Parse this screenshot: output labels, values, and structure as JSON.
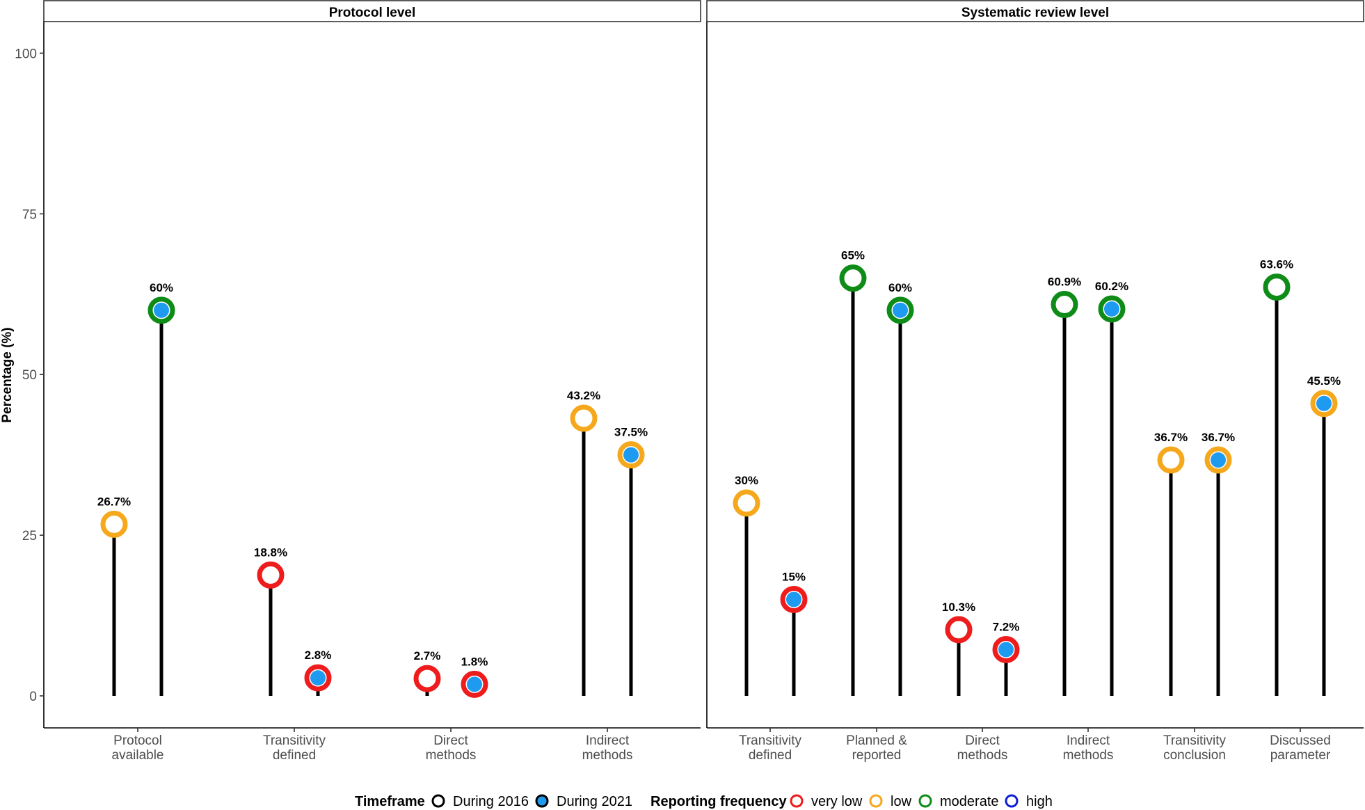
{
  "chart_data": {
    "type": "lollipop",
    "ylabel": "Percentage (%)",
    "ylim": [
      -5,
      105
    ],
    "yticks": [
      0,
      25,
      50,
      75,
      100
    ],
    "grid": false,
    "legend_position": "bottom",
    "timeframes": [
      {
        "key": "2016",
        "label": "During 2016",
        "fill": "#ffffff"
      },
      {
        "key": "2021",
        "label": "During 2021",
        "fill": "#1e9bf0"
      }
    ],
    "legend": {
      "timeframe_title": "Timeframe",
      "frequency_title": "Reporting frequency",
      "timeframe_2016_label": "During 2016",
      "timeframe_2021_label": "During 2021",
      "freq_very_low_label": "very low",
      "freq_low_label": "low",
      "freq_moderate_label": "moderate",
      "freq_high_label": "high"
    },
    "frequency_colors": {
      "very low": "#ee1c1c",
      "low": "#f5a81c",
      "moderate": "#0f8c17",
      "high": "#0d1ed9"
    },
    "panels": [
      {
        "title": "Protocol level",
        "categories": [
          {
            "label": [
              "Protocol",
              "available"
            ],
            "points": [
              {
                "timeframe": "2016",
                "value": 26.7,
                "label": "26.7%",
                "frequency": "low"
              },
              {
                "timeframe": "2021",
                "value": 60,
                "label": "60%",
                "frequency": "moderate"
              }
            ]
          },
          {
            "label": [
              "Transitivity",
              "defined"
            ],
            "points": [
              {
                "timeframe": "2016",
                "value": 18.8,
                "label": "18.8%",
                "frequency": "very low"
              },
              {
                "timeframe": "2021",
                "value": 2.8,
                "label": "2.8%",
                "frequency": "very low"
              }
            ]
          },
          {
            "label": [
              "Direct",
              "methods"
            ],
            "points": [
              {
                "timeframe": "2016",
                "value": 2.7,
                "label": "2.7%",
                "frequency": "very low"
              },
              {
                "timeframe": "2021",
                "value": 1.8,
                "label": "1.8%",
                "frequency": "very low"
              }
            ]
          },
          {
            "label": [
              "Indirect",
              "methods"
            ],
            "points": [
              {
                "timeframe": "2016",
                "value": 43.2,
                "label": "43.2%",
                "frequency": "low"
              },
              {
                "timeframe": "2021",
                "value": 37.5,
                "label": "37.5%",
                "frequency": "low"
              }
            ]
          }
        ]
      },
      {
        "title": "Systematic review level",
        "categories": [
          {
            "label": [
              "Transitivity",
              "defined"
            ],
            "points": [
              {
                "timeframe": "2016",
                "value": 30,
                "label": "30%",
                "frequency": "low"
              },
              {
                "timeframe": "2021",
                "value": 15,
                "label": "15%",
                "frequency": "very low"
              }
            ]
          },
          {
            "label": [
              "Planned &",
              "reported"
            ],
            "points": [
              {
                "timeframe": "2016",
                "value": 65,
                "label": "65%",
                "frequency": "moderate"
              },
              {
                "timeframe": "2021",
                "value": 60,
                "label": "60%",
                "frequency": "moderate"
              }
            ]
          },
          {
            "label": [
              "Direct",
              "methods"
            ],
            "points": [
              {
                "timeframe": "2016",
                "value": 10.3,
                "label": "10.3%",
                "frequency": "very low"
              },
              {
                "timeframe": "2021",
                "value": 7.2,
                "label": "7.2%",
                "frequency": "very low"
              }
            ]
          },
          {
            "label": [
              "Indirect",
              "methods"
            ],
            "points": [
              {
                "timeframe": "2016",
                "value": 60.9,
                "label": "60.9%",
                "frequency": "moderate"
              },
              {
                "timeframe": "2021",
                "value": 60.2,
                "label": "60.2%",
                "frequency": "moderate"
              }
            ]
          },
          {
            "label": [
              "Transitivity",
              "conclusion"
            ],
            "points": [
              {
                "timeframe": "2016",
                "value": 36.7,
                "label": "36.7%",
                "frequency": "low"
              },
              {
                "timeframe": "2021",
                "value": 36.7,
                "label": "36.7%",
                "frequency": "low"
              }
            ]
          },
          {
            "label": [
              "Discussed",
              "parameter"
            ],
            "points": [
              {
                "timeframe": "2016",
                "value": 63.6,
                "label": "63.6%",
                "frequency": "moderate"
              },
              {
                "timeframe": "2021",
                "value": 45.5,
                "label": "45.5%",
                "frequency": "low"
              }
            ]
          }
        ]
      }
    ]
  }
}
